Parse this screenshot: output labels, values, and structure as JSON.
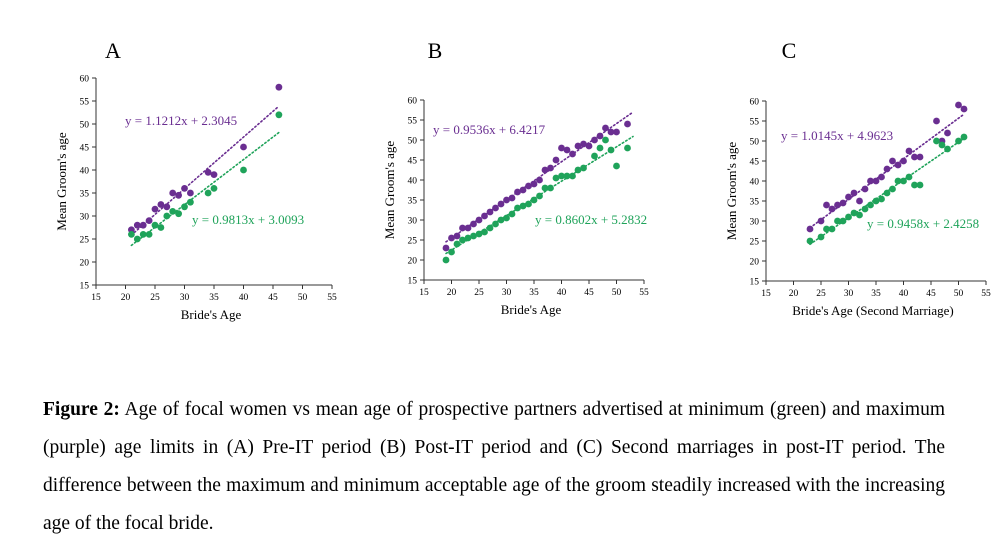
{
  "colors": {
    "green": "#1fa35a",
    "purple": "#6a2e91",
    "axis": "#333333"
  },
  "caption": {
    "label": "Figure 2:",
    "text": " Age of focal women vs mean age of prospective partners advertised at minimum (green) and maximum (purple) age limits in (A) Pre-IT period (B) Post-IT period and (C) Second marriages in post-IT period. The difference between the maximum and minimum acceptable age of the groom steadily increased with the increasing age of the focal bride."
  },
  "chart_data": [
    {
      "type": "scatter",
      "panel": "A",
      "xlabel": "Bride's Age",
      "ylabel": "Mean Groom's age",
      "xlim": [
        15,
        55
      ],
      "ylim": [
        15,
        60
      ],
      "xticks": [
        15,
        20,
        25,
        30,
        35,
        40,
        45,
        50,
        55
      ],
      "yticks": [
        15,
        20,
        25,
        30,
        35,
        40,
        45,
        50,
        55,
        60
      ],
      "series": [
        {
          "color": "purple",
          "equation": "y = 1.1212x + 2.3045",
          "trend": {
            "slope": 1.1212,
            "intercept": 2.3045,
            "x": [
              21,
              46
            ]
          },
          "points": [
            [
              21,
              27
            ],
            [
              22,
              28
            ],
            [
              23,
              28
            ],
            [
              24,
              29
            ],
            [
              25,
              31.5
            ],
            [
              26,
              32.5
            ],
            [
              27,
              32
            ],
            [
              28,
              35
            ],
            [
              29,
              34.5
            ],
            [
              30,
              36
            ],
            [
              31,
              35
            ],
            [
              34,
              39.5
            ],
            [
              35,
              39
            ],
            [
              40,
              45
            ],
            [
              46,
              58
            ]
          ]
        },
        {
          "color": "green",
          "equation": "y = 0.9813x + 3.0093",
          "trend": {
            "slope": 0.9813,
            "intercept": 3.0093,
            "x": [
              21,
              46
            ]
          },
          "points": [
            [
              21,
              26
            ],
            [
              22,
              25
            ],
            [
              23,
              26
            ],
            [
              24,
              26
            ],
            [
              25,
              28
            ],
            [
              26,
              27.5
            ],
            [
              27,
              30
            ],
            [
              28,
              31
            ],
            [
              29,
              30.5
            ],
            [
              30,
              32
            ],
            [
              31,
              33
            ],
            [
              34,
              35
            ],
            [
              35,
              36
            ],
            [
              40,
              40
            ],
            [
              46,
              52
            ]
          ]
        }
      ]
    },
    {
      "type": "scatter",
      "panel": "B",
      "xlabel": "Bride's Age",
      "ylabel": "Mean Groom's age",
      "xlim": [
        15,
        55
      ],
      "ylim": [
        15,
        60
      ],
      "xticks": [
        15,
        20,
        25,
        30,
        35,
        40,
        45,
        50,
        55
      ],
      "yticks": [
        15,
        20,
        25,
        30,
        35,
        40,
        45,
        50,
        55,
        60
      ],
      "series": [
        {
          "color": "purple",
          "equation": "y = 0.9536x + 6.4217",
          "trend": {
            "slope": 0.9536,
            "intercept": 6.4217,
            "x": [
              19,
              53
            ]
          },
          "points": [
            [
              19,
              23
            ],
            [
              20,
              25.5
            ],
            [
              21,
              26
            ],
            [
              22,
              28
            ],
            [
              23,
              28
            ],
            [
              24,
              29
            ],
            [
              25,
              30
            ],
            [
              26,
              31
            ],
            [
              27,
              32
            ],
            [
              28,
              33
            ],
            [
              29,
              34
            ],
            [
              30,
              35
            ],
            [
              31,
              35.5
            ],
            [
              32,
              37
            ],
            [
              33,
              37.5
            ],
            [
              34,
              38.5
            ],
            [
              35,
              39
            ],
            [
              36,
              40
            ],
            [
              37,
              42.5
            ],
            [
              38,
              43
            ],
            [
              39,
              45
            ],
            [
              40,
              48
            ],
            [
              41,
              47.5
            ],
            [
              42,
              46.5
            ],
            [
              43,
              48.5
            ],
            [
              44,
              49
            ],
            [
              45,
              48.5
            ],
            [
              46,
              50
            ],
            [
              47,
              51
            ],
            [
              48,
              53
            ],
            [
              49,
              52
            ],
            [
              50,
              52
            ],
            [
              52,
              54
            ]
          ]
        },
        {
          "color": "green",
          "equation": "y = 0.8602x + 5.2832",
          "trend": {
            "slope": 0.8602,
            "intercept": 5.2832,
            "x": [
              19,
              53
            ]
          },
          "points": [
            [
              19,
              20
            ],
            [
              20,
              22
            ],
            [
              21,
              24
            ],
            [
              22,
              25
            ],
            [
              23,
              25.5
            ],
            [
              24,
              26
            ],
            [
              25,
              26.5
            ],
            [
              26,
              27
            ],
            [
              27,
              28
            ],
            [
              28,
              29
            ],
            [
              29,
              30
            ],
            [
              30,
              30.5
            ],
            [
              31,
              31.5
            ],
            [
              32,
              33
            ],
            [
              33,
              33.5
            ],
            [
              34,
              34
            ],
            [
              35,
              35
            ],
            [
              36,
              36
            ],
            [
              37,
              38
            ],
            [
              38,
              38
            ],
            [
              39,
              40.5
            ],
            [
              40,
              41
            ],
            [
              41,
              41
            ],
            [
              42,
              41
            ],
            [
              43,
              42.5
            ],
            [
              44,
              43
            ],
            [
              46,
              46
            ],
            [
              47,
              48
            ],
            [
              48,
              50
            ],
            [
              49,
              47.5
            ],
            [
              50,
              43.5
            ],
            [
              52,
              48
            ]
          ]
        }
      ]
    },
    {
      "type": "scatter",
      "panel": "C",
      "xlabel": "Bride's Age (Second Marriage)",
      "ylabel": "Mean Groom's age",
      "xlim": [
        15,
        55
      ],
      "ylim": [
        15,
        60
      ],
      "xticks": [
        15,
        20,
        25,
        30,
        35,
        40,
        45,
        50,
        55
      ],
      "yticks": [
        15,
        20,
        25,
        30,
        35,
        40,
        45,
        50,
        55,
        60
      ],
      "series": [
        {
          "color": "purple",
          "equation": "y = 1.0145x + 4.9623",
          "trend": {
            "slope": 1.0145,
            "intercept": 4.9623,
            "x": [
              23,
              51
            ]
          },
          "points": [
            [
              23,
              28
            ],
            [
              25,
              30
            ],
            [
              26,
              34
            ],
            [
              27,
              33
            ],
            [
              28,
              34
            ],
            [
              29,
              34.5
            ],
            [
              30,
              36
            ],
            [
              31,
              37
            ],
            [
              32,
              35
            ],
            [
              33,
              38
            ],
            [
              34,
              40
            ],
            [
              35,
              40
            ],
            [
              36,
              41
            ],
            [
              37,
              43
            ],
            [
              38,
              45
            ],
            [
              39,
              44
            ],
            [
              40,
              45
            ],
            [
              41,
              47.5
            ],
            [
              42,
              46
            ],
            [
              43,
              46
            ],
            [
              46,
              55
            ],
            [
              47,
              50
            ],
            [
              48,
              52
            ],
            [
              50,
              59
            ],
            [
              51,
              58
            ]
          ]
        },
        {
          "color": "green",
          "equation": "y = 0.9458x + 2.4258",
          "trend": {
            "slope": 0.9458,
            "intercept": 2.4258,
            "x": [
              23,
              51
            ]
          },
          "points": [
            [
              23,
              25
            ],
            [
              25,
              26
            ],
            [
              26,
              28
            ],
            [
              27,
              28
            ],
            [
              28,
              30
            ],
            [
              29,
              30
            ],
            [
              30,
              31
            ],
            [
              31,
              32
            ],
            [
              32,
              31.5
            ],
            [
              33,
              33
            ],
            [
              34,
              34
            ],
            [
              35,
              35
            ],
            [
              36,
              35.5
            ],
            [
              37,
              37
            ],
            [
              38,
              38
            ],
            [
              39,
              40
            ],
            [
              40,
              40
            ],
            [
              41,
              41
            ],
            [
              42,
              39
            ],
            [
              43,
              39
            ],
            [
              46,
              50
            ],
            [
              47,
              49
            ],
            [
              48,
              48
            ],
            [
              50,
              50
            ],
            [
              51,
              51
            ]
          ]
        }
      ]
    }
  ]
}
